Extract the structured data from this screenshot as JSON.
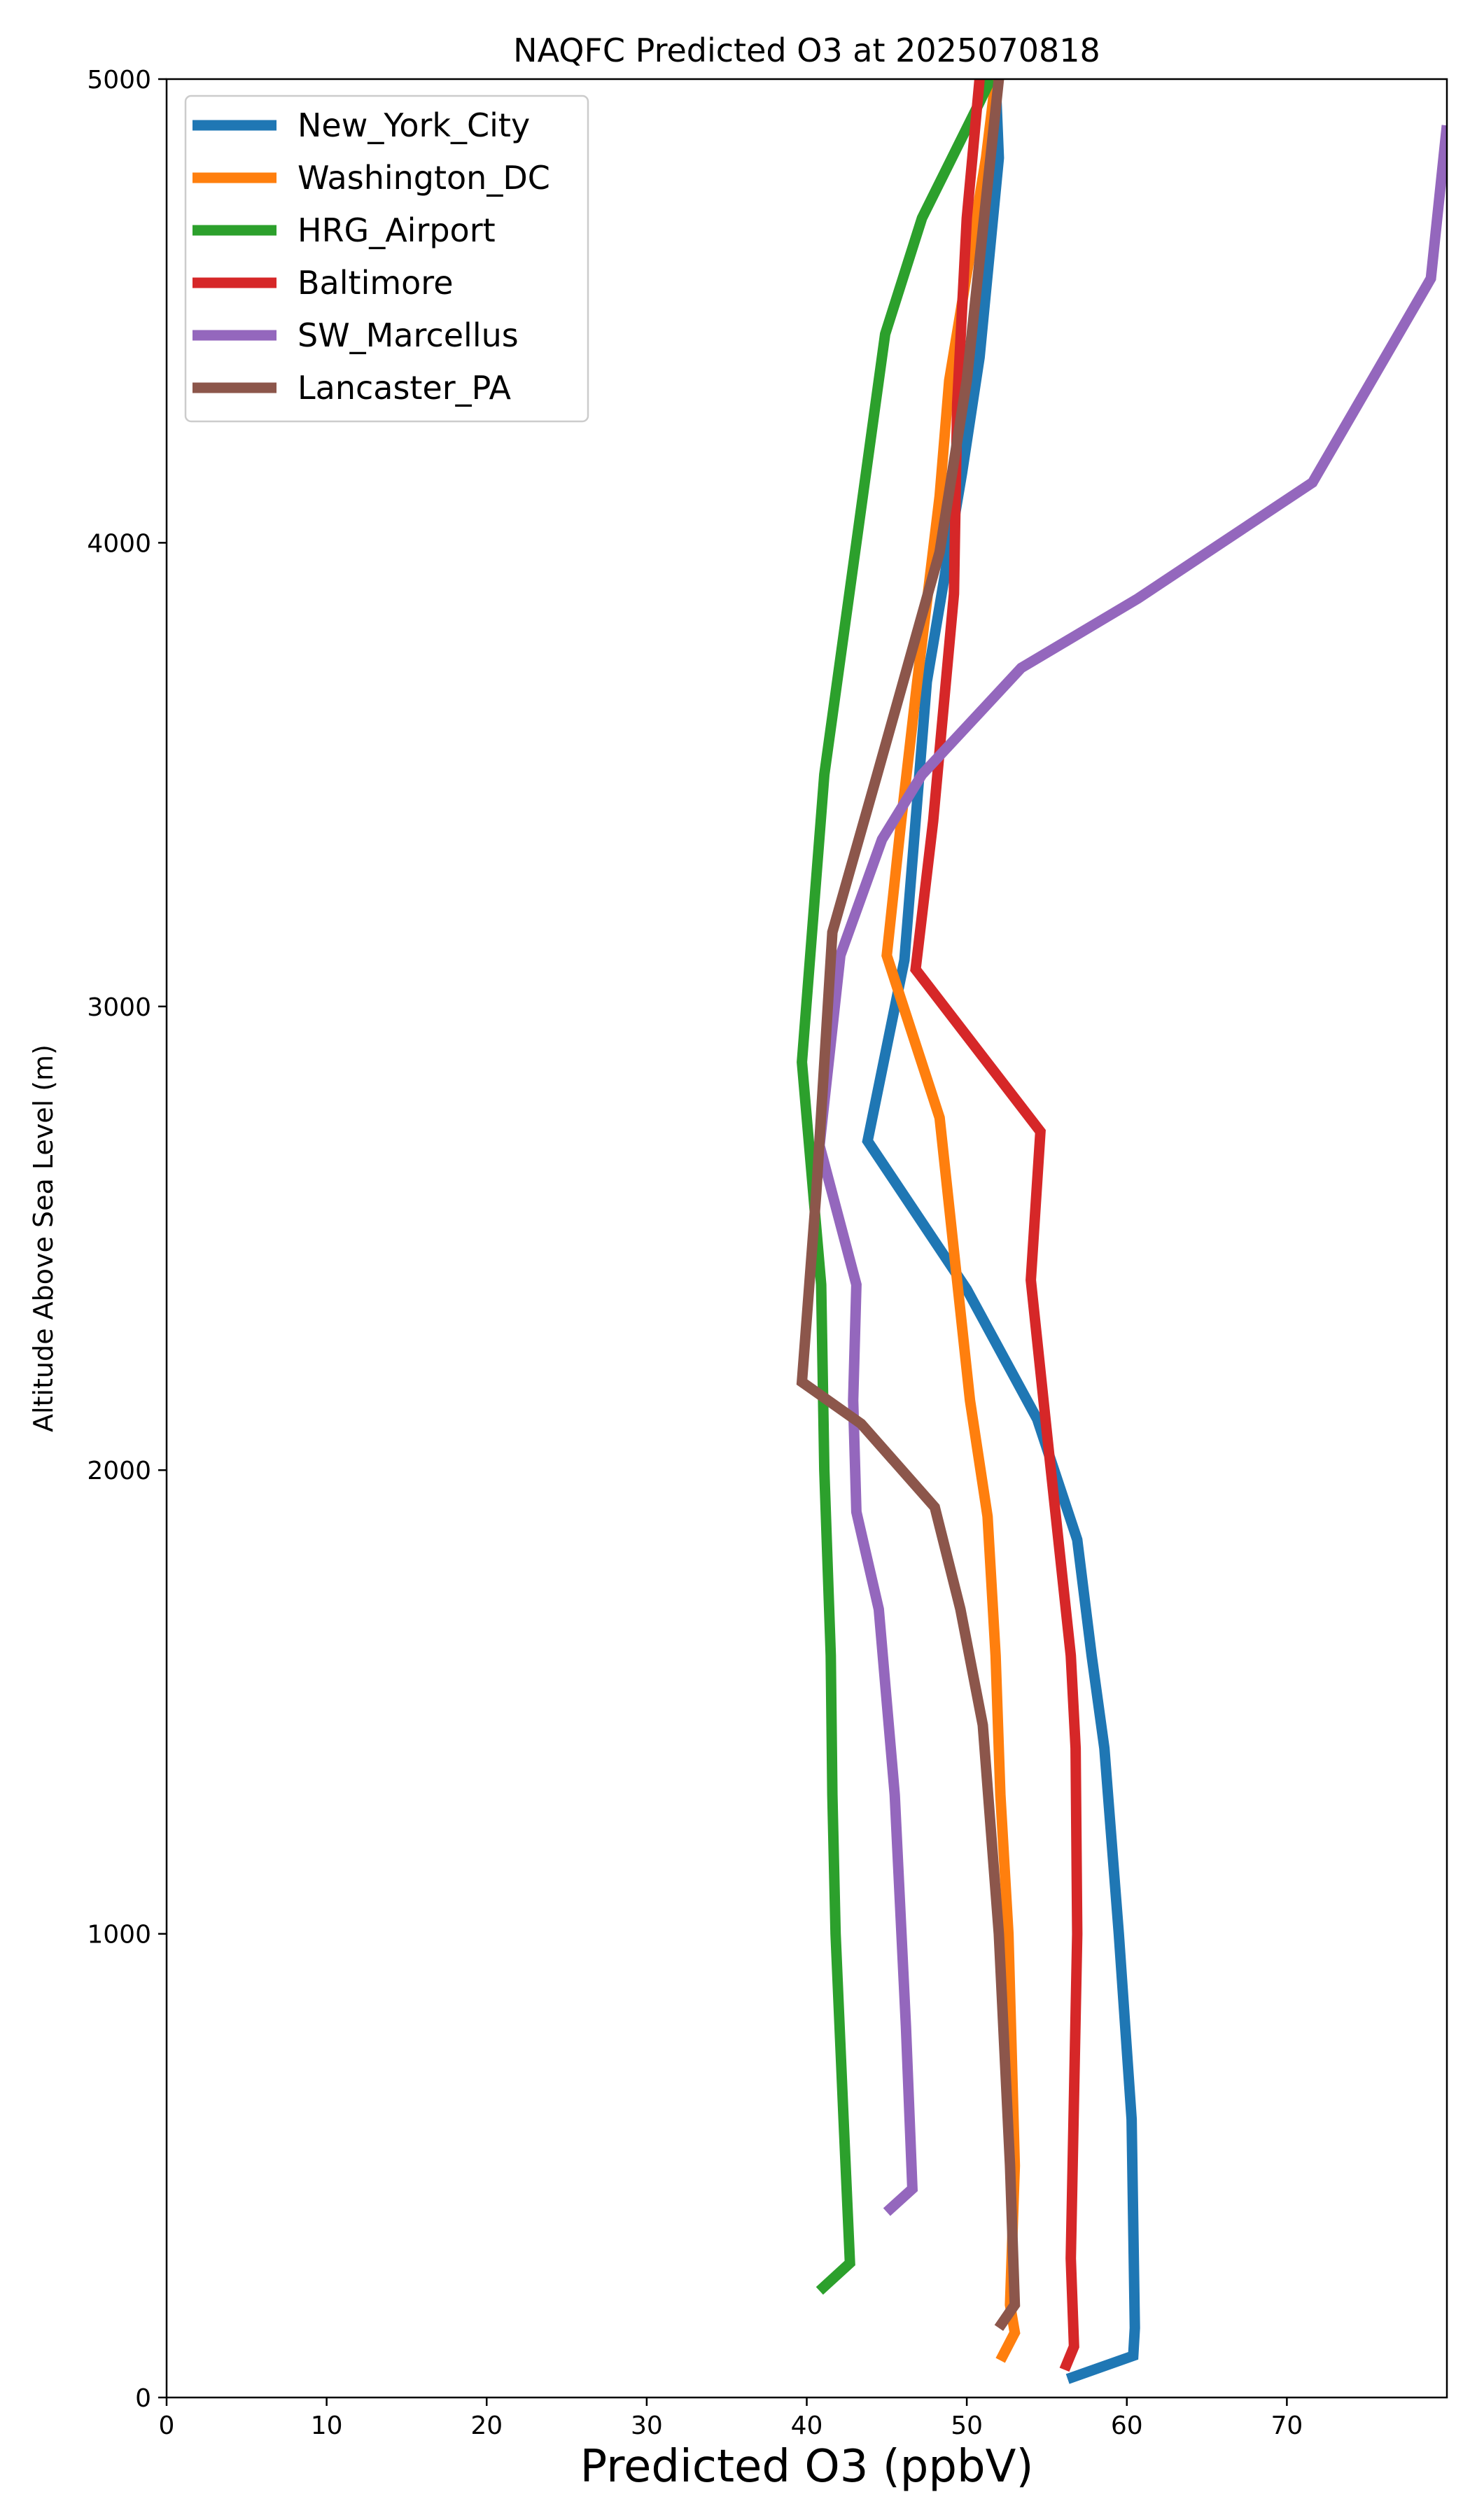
{
  "chart_data": {
    "type": "line",
    "title": "NAQFC Predicted O3 at 2025070818",
    "xlabel": "Predicted O3 (ppbV)",
    "ylabel": "Altitude Above Sea Level (m)",
    "xlim": [
      0,
      80
    ],
    "ylim": [
      0,
      5000
    ],
    "xticks": [
      0,
      10,
      20,
      30,
      40,
      50,
      60,
      70
    ],
    "yticks": [
      0,
      1000,
      2000,
      3000,
      4000,
      5000
    ],
    "grid": false,
    "legend_position": "top-left",
    "series": [
      {
        "name": "New_York_City",
        "color": "#1f77b4",
        "points": [
          [
            56.3,
            40
          ],
          [
            60.4,
            90
          ],
          [
            60.5,
            150
          ],
          [
            60.3,
            600
          ],
          [
            59.5,
            1000
          ],
          [
            58.6,
            1400
          ],
          [
            57.8,
            1600
          ],
          [
            56.9,
            1850
          ],
          [
            54.4,
            2110
          ],
          [
            50,
            2390
          ],
          [
            43.8,
            2710
          ],
          [
            46.1,
            3100
          ],
          [
            47.5,
            3700
          ],
          [
            49.7,
            4150
          ],
          [
            50.8,
            4400
          ],
          [
            52,
            4830
          ],
          [
            51.8,
            5000
          ]
        ]
      },
      {
        "name": "Washington_DC",
        "color": "#ff7f0e",
        "points": [
          [
            52.1,
            80
          ],
          [
            53,
            140
          ],
          [
            52.7,
            200
          ],
          [
            53,
            500
          ],
          [
            52.6,
            1000
          ],
          [
            52.1,
            1300
          ],
          [
            51.8,
            1600
          ],
          [
            51.3,
            1900
          ],
          [
            50.2,
            2150
          ],
          [
            48.3,
            2760
          ],
          [
            45,
            3110
          ],
          [
            45.9,
            3400
          ],
          [
            46.9,
            3700
          ],
          [
            48.3,
            4100
          ],
          [
            48.9,
            4350
          ],
          [
            51.2,
            4830
          ],
          [
            51.8,
            5000
          ]
        ]
      },
      {
        "name": "HRG_Airport",
        "color": "#2ca02c",
        "points": [
          [
            40.8,
            230
          ],
          [
            42.7,
            290
          ],
          [
            42.3,
            600
          ],
          [
            41.8,
            1000
          ],
          [
            41.6,
            1300
          ],
          [
            41.5,
            1600
          ],
          [
            41.1,
            2000
          ],
          [
            40.9,
            2400
          ],
          [
            39.7,
            2880
          ],
          [
            41.1,
            3500
          ],
          [
            43.1,
            4000
          ],
          [
            44.9,
            4450
          ],
          [
            47.2,
            4700
          ],
          [
            50.8,
            4950
          ],
          [
            51.5,
            5000
          ]
        ]
      },
      {
        "name": "Baltimore",
        "color": "#d62728",
        "points": [
          [
            56.1,
            60
          ],
          [
            56.7,
            110
          ],
          [
            56.5,
            300
          ],
          [
            56.9,
            1000
          ],
          [
            56.8,
            1400
          ],
          [
            56.5,
            1600
          ],
          [
            55.1,
            2050
          ],
          [
            54,
            2410
          ],
          [
            54.6,
            2730
          ],
          [
            46.8,
            3080
          ],
          [
            47.9,
            3400
          ],
          [
            49.2,
            3890
          ],
          [
            49.4,
            4300
          ],
          [
            50,
            4700
          ],
          [
            50.8,
            5000
          ]
        ]
      },
      {
        "name": "SW_Marcellus",
        "color": "#9467bd",
        "points": [
          [
            45,
            400
          ],
          [
            46.6,
            450
          ],
          [
            46.2,
            800
          ],
          [
            45.5,
            1300
          ],
          [
            44.5,
            1700
          ],
          [
            43.1,
            1910
          ],
          [
            42.9,
            2150
          ],
          [
            43.1,
            2400
          ],
          [
            40.8,
            2700
          ],
          [
            42.1,
            3110
          ],
          [
            44.7,
            3360
          ],
          [
            47.2,
            3500
          ],
          [
            53.4,
            3730
          ],
          [
            60.7,
            3880
          ],
          [
            71.6,
            4130
          ],
          [
            79,
            4570
          ],
          [
            80,
            4900
          ]
        ]
      },
      {
        "name": "Lancaster_PA",
        "color": "#8c564b",
        "points": [
          [
            52,
            150
          ],
          [
            53,
            200
          ],
          [
            52.7,
            500
          ],
          [
            52,
            1000
          ],
          [
            51,
            1450
          ],
          [
            49.6,
            1700
          ],
          [
            48,
            1920
          ],
          [
            43.4,
            2100
          ],
          [
            39.7,
            2190
          ],
          [
            40.6,
            2600
          ],
          [
            41.6,
            3160
          ],
          [
            44.4,
            3500
          ],
          [
            48.3,
            3980
          ],
          [
            50,
            4350
          ],
          [
            52,
            5000
          ]
        ]
      }
    ]
  }
}
